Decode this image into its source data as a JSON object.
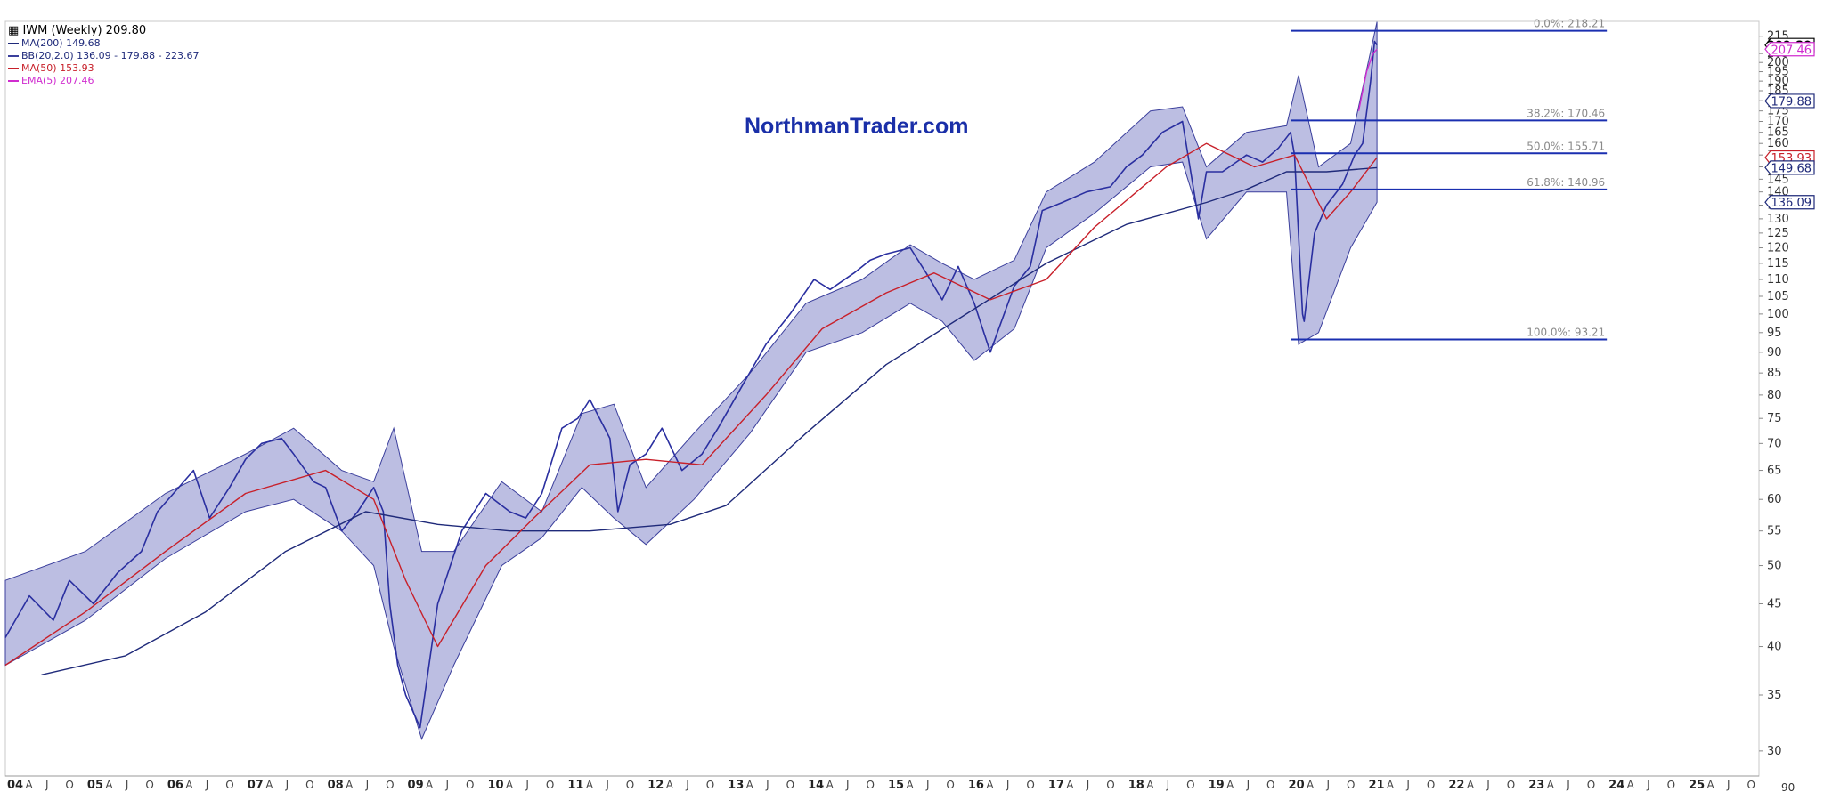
{
  "chart_data": {
    "type": "line",
    "title": "IWM (Weekly) 209.80",
    "watermark": "NorthmanTrader.com",
    "legend": [
      {
        "id": "ma200",
        "label": "MA(200) 149.68",
        "color": "#1f2a7a"
      },
      {
        "id": "bb",
        "label": "BB(20,2.0) 136.09 - 179.88 - 223.67",
        "color": "#3b3f9c"
      },
      {
        "id": "ma50",
        "label": "MA(50) 153.93",
        "color": "#c8202a"
      },
      {
        "id": "ema5",
        "label": "EMA(5) 207.46",
        "color": "#d02ccf"
      }
    ],
    "x_range": [
      2004.0,
      2025.9
    ],
    "year_labels": [
      "04",
      "05",
      "06",
      "07",
      "08",
      "09",
      "10",
      "11",
      "12",
      "13",
      "14",
      "15",
      "16",
      "17",
      "18",
      "19",
      "20",
      "21",
      "22",
      "23",
      "24",
      "25"
    ],
    "month_labels": [
      "A",
      "J",
      "O"
    ],
    "y_scale": "log",
    "ylim": [
      28,
      224
    ],
    "y_ticks": [
      30,
      35,
      40,
      45,
      50,
      55,
      60,
      65,
      70,
      75,
      80,
      85,
      90,
      95,
      100,
      105,
      110,
      115,
      120,
      125,
      130,
      135,
      140,
      145,
      150,
      155,
      160,
      165,
      170,
      175,
      180,
      185,
      190,
      195,
      200,
      205,
      215
    ],
    "y_bottom_label": "90",
    "price_badges": [
      {
        "value": 209.8,
        "label": "209.80",
        "style": "current",
        "color": "#000000"
      },
      {
        "value": 207.46,
        "label": "207.46",
        "style": "tag",
        "color": "#d02ccf"
      },
      {
        "value": 179.88,
        "label": "179.88",
        "style": "tag",
        "color": "#1f2a7a"
      },
      {
        "value": 153.93,
        "label": "153.93",
        "style": "tag",
        "color": "#c8202a"
      },
      {
        "value": 149.68,
        "label": "149.68",
        "style": "tag",
        "color": "#1f2a7a"
      },
      {
        "value": 136.09,
        "label": "136.09",
        "style": "tag",
        "color": "#1f2a7a"
      }
    ],
    "fibonacci": {
      "x_start": 2020.05,
      "x_end": 2024.0,
      "levels": [
        {
          "value": 218.21,
          "label": "0.0%: 218.21"
        },
        {
          "value": 170.46,
          "label": "38.2%: 170.46"
        },
        {
          "value": 155.71,
          "label": "50.0%: 155.71"
        },
        {
          "value": 140.96,
          "label": "61.8%: 140.96"
        },
        {
          "value": 93.21,
          "label": "100.0%: 93.21"
        }
      ]
    },
    "series": [
      {
        "name": "IWM",
        "color": "#2a2fa0",
        "x": [
          2004.0,
          2004.3,
          2004.6,
          2004.8,
          2005.1,
          2005.4,
          2005.7,
          2005.9,
          2006.1,
          2006.35,
          2006.55,
          2006.8,
          2007.0,
          2007.2,
          2007.45,
          2007.6,
          2007.85,
          2008.0,
          2008.2,
          2008.4,
          2008.6,
          2008.72,
          2008.8,
          2008.9,
          2009.0,
          2009.18,
          2009.4,
          2009.7,
          2010.0,
          2010.3,
          2010.5,
          2010.7,
          2010.95,
          2011.15,
          2011.3,
          2011.55,
          2011.65,
          2011.8,
          2012.0,
          2012.2,
          2012.45,
          2012.7,
          2012.9,
          2013.2,
          2013.5,
          2013.8,
          2014.1,
          2014.3,
          2014.6,
          2014.8,
          2015.0,
          2015.3,
          2015.5,
          2015.7,
          2015.9,
          2016.1,
          2016.3,
          2016.6,
          2016.8,
          2016.95,
          2017.2,
          2017.5,
          2017.8,
          2018.0,
          2018.2,
          2018.45,
          2018.7,
          2018.9,
          2019.0,
          2019.2,
          2019.5,
          2019.7,
          2019.9,
          2020.05,
          2020.1,
          2020.2,
          2020.22,
          2020.35,
          2020.5,
          2020.7,
          2020.85,
          2020.95,
          2021.05,
          2021.1,
          2021.13
        ],
        "values": [
          41,
          46,
          43,
          48,
          45,
          49,
          52,
          58,
          61,
          65,
          57,
          62,
          67,
          70,
          71,
          68,
          63,
          62,
          55,
          58,
          62,
          58,
          45,
          38,
          35,
          32,
          45,
          55,
          61,
          58,
          57,
          61,
          73,
          75,
          79,
          71,
          58,
          66,
          68,
          73,
          65,
          68,
          73,
          82,
          92,
          100,
          110,
          107,
          112,
          116,
          118,
          120,
          112,
          104,
          114,
          103,
          90,
          108,
          114,
          133,
          136,
          140,
          142,
          150,
          155,
          165,
          170,
          130,
          148,
          148,
          155,
          152,
          158,
          165,
          155,
          100,
          98,
          125,
          135,
          143,
          155,
          160,
          190,
          212,
          209.8
        ]
      },
      {
        "name": "MA(200)",
        "color": "#1f2a7a",
        "x": [
          2004.45,
          2005.5,
          2006.5,
          2007.5,
          2008.5,
          2009.4,
          2010.3,
          2011.3,
          2012.3,
          2013.0,
          2014.0,
          2015.0,
          2016.0,
          2017.0,
          2018.0,
          2019.0,
          2019.5,
          2020.0,
          2020.5,
          2021.13
        ],
        "values": [
          37,
          39,
          44,
          52,
          58,
          56,
          55,
          55,
          56,
          59,
          72,
          87,
          100,
          115,
          128,
          136,
          141,
          148,
          148,
          149.68
        ]
      },
      {
        "name": "MA(50)",
        "color": "#c8202a",
        "x": [
          2004.0,
          2005.0,
          2006.0,
          2007.0,
          2008.0,
          2008.6,
          2009.0,
          2009.4,
          2010.0,
          2010.6,
          2011.3,
          2012.0,
          2012.7,
          2013.5,
          2014.2,
          2015.0,
          2015.6,
          2016.3,
          2017.0,
          2017.6,
          2018.5,
          2019.0,
          2019.6,
          2020.1,
          2020.5,
          2020.8,
          2021.13
        ],
        "values": [
          38,
          44,
          52,
          61,
          65,
          60,
          48,
          40,
          50,
          57,
          66,
          67,
          66,
          80,
          96,
          106,
          112,
          104,
          110,
          127,
          150,
          160,
          150,
          155,
          130,
          140,
          153.93
        ]
      },
      {
        "name": "EMA(5)",
        "color": "#d02ccf",
        "x": [
          2020.9,
          2021.0,
          2021.08,
          2021.13
        ],
        "values": [
          175,
          195,
          205,
          207.46
        ]
      }
    ],
    "bands": {
      "name": "BB(20,2.0)",
      "color": "#9fa3d6",
      "x": [
        2004.0,
        2005.0,
        2006.0,
        2007.0,
        2007.6,
        2008.2,
        2008.6,
        2008.85,
        2009.2,
        2009.6,
        2010.2,
        2010.7,
        2011.2,
        2011.6,
        2012.0,
        2012.6,
        2013.3,
        2014.0,
        2014.7,
        2015.3,
        2015.7,
        2016.1,
        2016.6,
        2017.0,
        2017.6,
        2018.3,
        2018.7,
        2019.0,
        2019.5,
        2020.0,
        2020.15,
        2020.4,
        2020.8,
        2021.13
      ],
      "upper": [
        48,
        52,
        61,
        68,
        73,
        65,
        63,
        73,
        52,
        52,
        63,
        58,
        76,
        78,
        62,
        72,
        85,
        103,
        110,
        121,
        115,
        110,
        116,
        140,
        152,
        175,
        177,
        150,
        165,
        168,
        193,
        150,
        160,
        223.67
      ],
      "lower": [
        38,
        43,
        51,
        58,
        60,
        55,
        50,
        40,
        31,
        38,
        50,
        54,
        62,
        57,
        53,
        60,
        72,
        90,
        95,
        103,
        98,
        88,
        96,
        120,
        132,
        150,
        152,
        123,
        140,
        140,
        92,
        95,
        120,
        136.09
      ]
    }
  }
}
